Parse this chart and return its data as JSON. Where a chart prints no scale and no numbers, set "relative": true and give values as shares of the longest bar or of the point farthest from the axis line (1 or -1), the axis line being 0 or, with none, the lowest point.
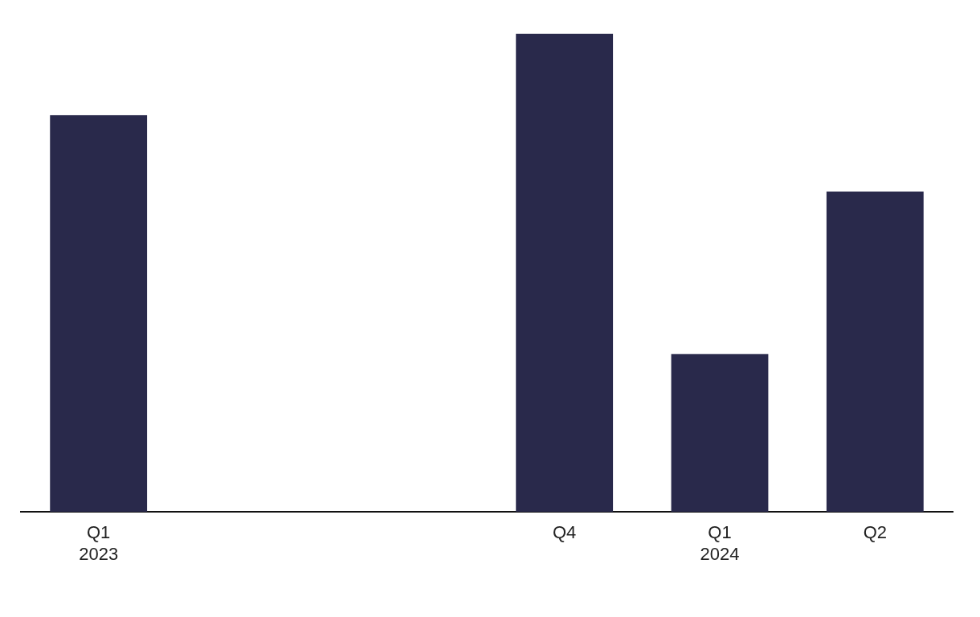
{
  "chart_data": {
    "type": "bar",
    "relative": true,
    "categories": [
      "Q1\n2023",
      null,
      null,
      "Q4",
      "Q1\n2024",
      "Q2"
    ],
    "values": [
      0.83,
      null,
      null,
      1,
      0.33,
      0.67
    ],
    "color": "#29294b",
    "grid": false,
    "legend": false
  }
}
